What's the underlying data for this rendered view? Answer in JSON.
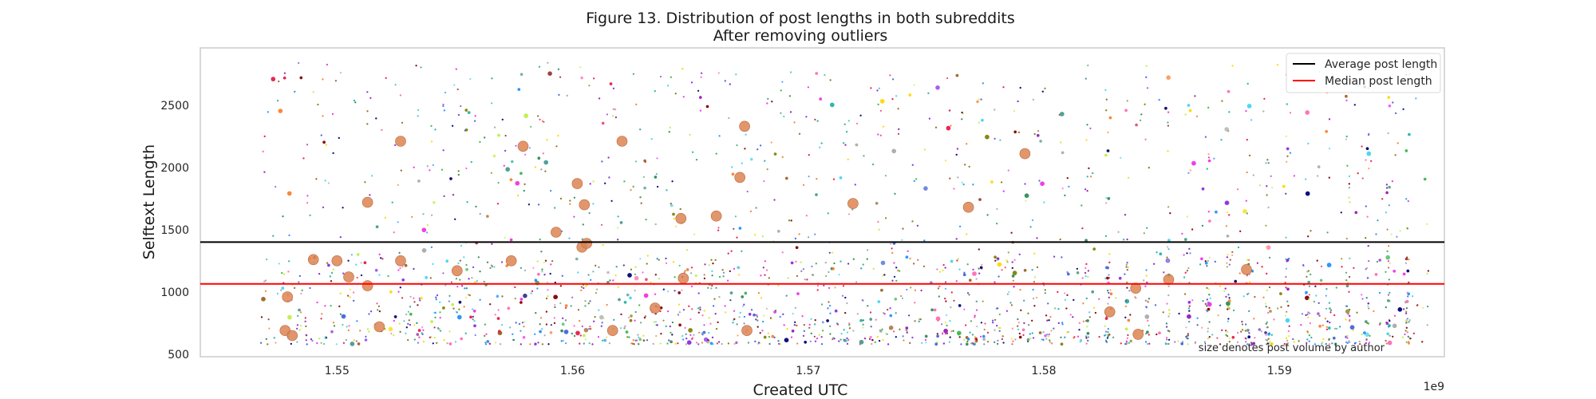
{
  "chart_data": {
    "type": "scatter",
    "title": "Figure 13. Distribution of post lengths in both subreddits",
    "subtitle": "After removing outliers",
    "xlabel": "Created UTC",
    "ylabel": "Selftext Length",
    "x_offset_label": "1e9",
    "x_ticks": [
      1.55,
      1.56,
      1.57,
      1.58,
      1.59
    ],
    "x_tick_labels": [
      "1.55",
      "1.56",
      "1.57",
      "1.58",
      "1.59"
    ],
    "y_ticks": [
      500,
      1000,
      1500,
      2000,
      2500
    ],
    "y_tick_labels": [
      "500",
      "1000",
      "1500",
      "2000",
      "2500"
    ],
    "xlim": [
      1.5442,
      1.597
    ],
    "ylim": [
      480,
      2960
    ],
    "x_data_range": [
      1.5467,
      1.5962
    ],
    "y_data_range": [
      580,
      2840
    ],
    "grid": false,
    "legend_position": "top-right",
    "annotation": "size denotes post volume by author",
    "series": [
      {
        "name": "Average post length",
        "kind": "hline",
        "y": 1400,
        "color": "#000000"
      },
      {
        "name": "Median post length",
        "kind": "hline",
        "y": 1065,
        "color": "#ff0000"
      }
    ],
    "highlighted_points": [
      {
        "x": 1.5479,
        "y": 960
      },
      {
        "x": 1.5478,
        "y": 690
      },
      {
        "x": 1.5481,
        "y": 650
      },
      {
        "x": 1.549,
        "y": 1260
      },
      {
        "x": 1.55,
        "y": 1250
      },
      {
        "x": 1.5505,
        "y": 1120
      },
      {
        "x": 1.5513,
        "y": 1720
      },
      {
        "x": 1.5513,
        "y": 1050
      },
      {
        "x": 1.5518,
        "y": 720
      },
      {
        "x": 1.5527,
        "y": 2210
      },
      {
        "x": 1.5527,
        "y": 1250
      },
      {
        "x": 1.5551,
        "y": 1170
      },
      {
        "x": 1.5574,
        "y": 1250
      },
      {
        "x": 1.5579,
        "y": 2170
      },
      {
        "x": 1.5593,
        "y": 1480
      },
      {
        "x": 1.5602,
        "y": 1870
      },
      {
        "x": 1.5604,
        "y": 1360
      },
      {
        "x": 1.5605,
        "y": 1700
      },
      {
        "x": 1.5606,
        "y": 1390
      },
      {
        "x": 1.5621,
        "y": 2210
      },
      {
        "x": 1.5635,
        "y": 870
      },
      {
        "x": 1.5646,
        "y": 1590
      },
      {
        "x": 1.5647,
        "y": 1110
      },
      {
        "x": 1.5661,
        "y": 1610
      },
      {
        "x": 1.5671,
        "y": 1920
      },
      {
        "x": 1.5673,
        "y": 2330
      },
      {
        "x": 1.5674,
        "y": 690
      },
      {
        "x": 1.5719,
        "y": 1710
      },
      {
        "x": 1.5768,
        "y": 1680
      },
      {
        "x": 1.5792,
        "y": 2110
      },
      {
        "x": 1.5828,
        "y": 840
      },
      {
        "x": 1.5839,
        "y": 1030
      },
      {
        "x": 1.584,
        "y": 660
      },
      {
        "x": 1.5853,
        "y": 1100
      },
      {
        "x": 1.5886,
        "y": 1180
      },
      {
        "x": 1.5617,
        "y": 690
      }
    ],
    "highlight_color": "#dd8452"
  },
  "colors": {
    "axes_edge": "#cccccc",
    "text": "#262626",
    "palette": [
      "#e6194b",
      "#3cb44b",
      "#4363d8",
      "#f58231",
      "#911eb4",
      "#42d4f4",
      "#f032e6",
      "#bfef45",
      "#469990",
      "#9a6324",
      "#800000",
      "#808000",
      "#000075",
      "#a9a9a9",
      "#2e8b57",
      "#ff69b4",
      "#1e90ff",
      "#ffd700",
      "#8a2be2",
      "#20b2aa"
    ]
  }
}
